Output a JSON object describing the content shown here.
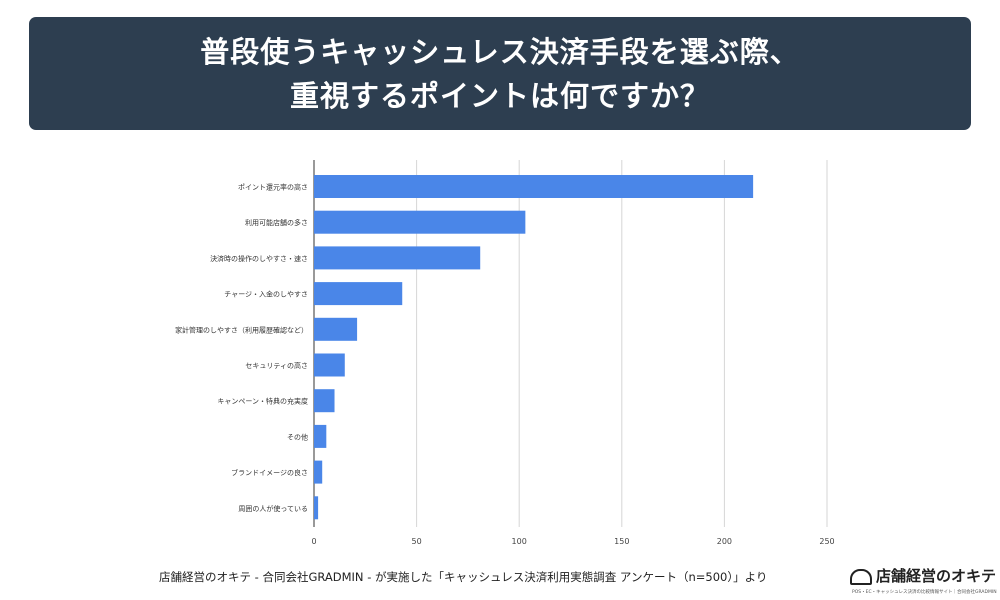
{
  "header": {
    "title_line1": "普段使うキャッシュレス決済手段を選ぶ際、",
    "title_line2": "重視するポイントは何ですか？"
  },
  "footer": {
    "caption": "店舗経営のオキテ - 合同会社GRADMIN - が実施した「キャッシュレス決済利用実態調査 アンケート（n=500）」より"
  },
  "logo": {
    "text": "店舗経営のオキテ",
    "subtext": "POS・EC・キャッシュレス決済の比較情報サイト｜合同会社GRADMIN"
  },
  "chart_data": {
    "type": "bar",
    "orientation": "horizontal",
    "categories": [
      "ポイント還元率の高さ",
      "利用可能店舗の多さ",
      "決済時の操作のしやすさ・速さ",
      "チャージ・入金のしやすさ",
      "家計管理のしやすさ（利用履歴確認など）",
      "セキュリティの高さ",
      "キャンペーン・特典の充実度",
      "その他",
      "ブランドイメージの良さ",
      "周囲の人が使っている"
    ],
    "values": [
      214,
      103,
      81,
      43,
      21,
      15,
      10,
      6,
      4,
      2
    ],
    "xlim": [
      0,
      250
    ],
    "xticks": [
      0,
      50,
      100,
      150,
      200,
      250
    ],
    "grid": "vertical",
    "bar_color": "#4a86e8",
    "title": "",
    "xlabel": "",
    "ylabel": ""
  }
}
